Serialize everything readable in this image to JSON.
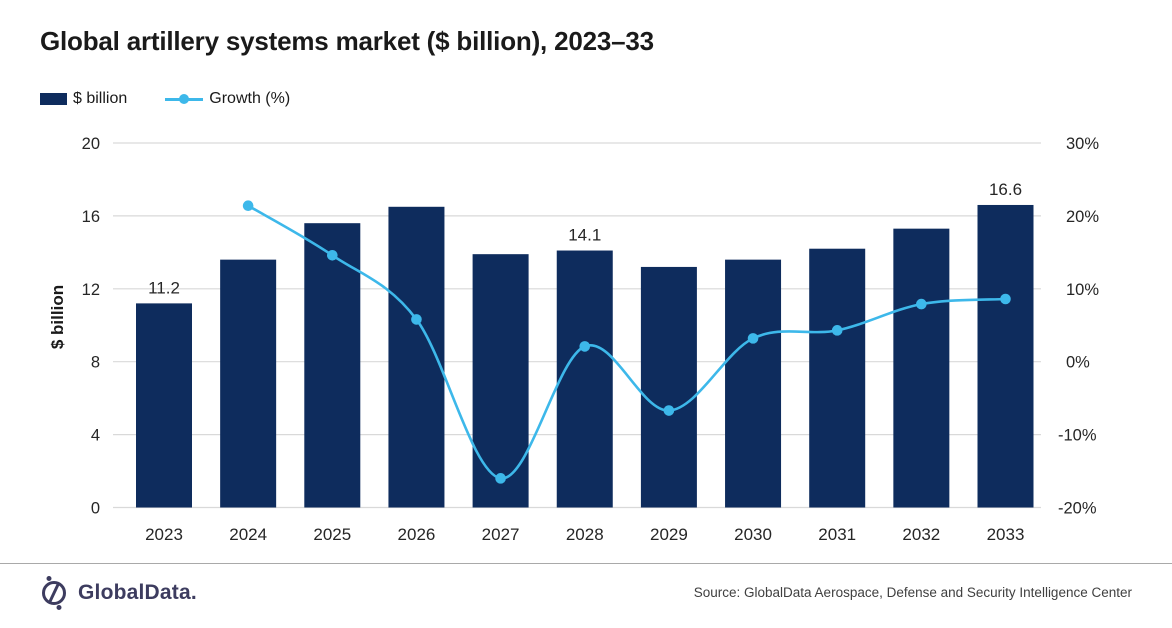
{
  "title": "Global artillery systems market ($ billion), 2023–33",
  "legend": {
    "bar_label": "$ billion",
    "line_label": "Growth (%)"
  },
  "chart_data": {
    "type": "bar+line combo",
    "categories": [
      "2023",
      "2024",
      "2025",
      "2026",
      "2027",
      "2028",
      "2029",
      "2030",
      "2031",
      "2032",
      "2033"
    ],
    "series": [
      {
        "name": "$ billion",
        "type": "bar",
        "axis": "left",
        "values": [
          11.2,
          13.6,
          15.6,
          16.5,
          13.9,
          14.1,
          13.2,
          13.6,
          14.2,
          15.3,
          16.6
        ]
      },
      {
        "name": "Growth (%)",
        "type": "line",
        "axis": "right",
        "values": [
          null,
          21.4,
          14.6,
          5.8,
          -16.0,
          2.1,
          -6.7,
          3.2,
          4.3,
          7.9,
          8.6
        ]
      }
    ],
    "bar_value_labels": {
      "2023": "11.2",
      "2028": "14.1",
      "2033": "16.6"
    },
    "left_axis": {
      "label": "$ billion",
      "min": 0,
      "max": 20,
      "ticks": [
        "20",
        "16",
        "12",
        "8",
        "4",
        "0"
      ]
    },
    "right_axis": {
      "min": -20,
      "max": 30,
      "ticks": [
        "30%",
        "20%",
        "10%",
        "0%",
        "-10%",
        "-20%"
      ]
    },
    "grid": true,
    "legend_position": "top-left"
  },
  "footer": {
    "logo_text": "GlobalData.",
    "source": "Source: GlobalData Aerospace, Defense and Security Intelligence Center"
  },
  "colors": {
    "bar": "#0e2c5d",
    "line": "#3db8ea",
    "grid": "#d9d9d9",
    "title": "#1a1a1a",
    "axis_text": "#262626",
    "logo": "#3d3c5f",
    "footer_rule": "#a9a9a9"
  }
}
